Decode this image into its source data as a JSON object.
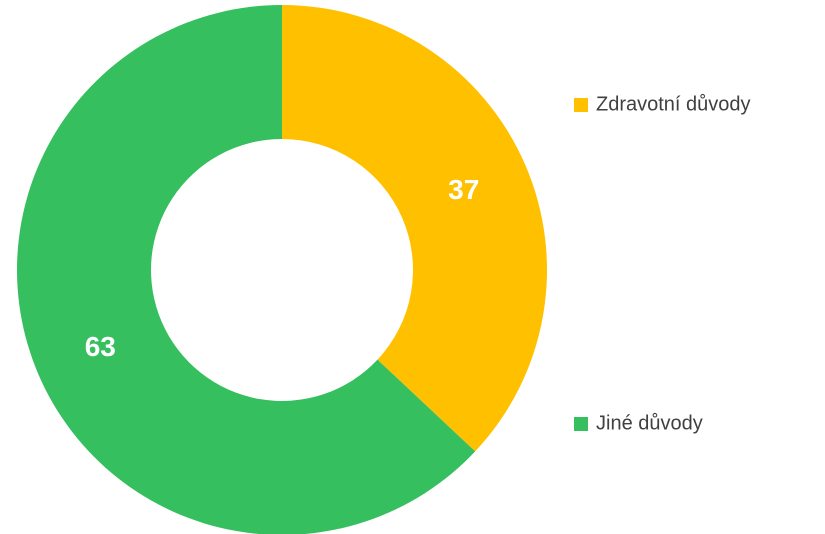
{
  "chart_data": {
    "type": "donut",
    "categories": [
      "Zdravotní důvody",
      "Jiné důvody"
    ],
    "values": [
      37,
      63
    ],
    "colors": [
      "#FFC000",
      "#35BF5E"
    ]
  }
}
